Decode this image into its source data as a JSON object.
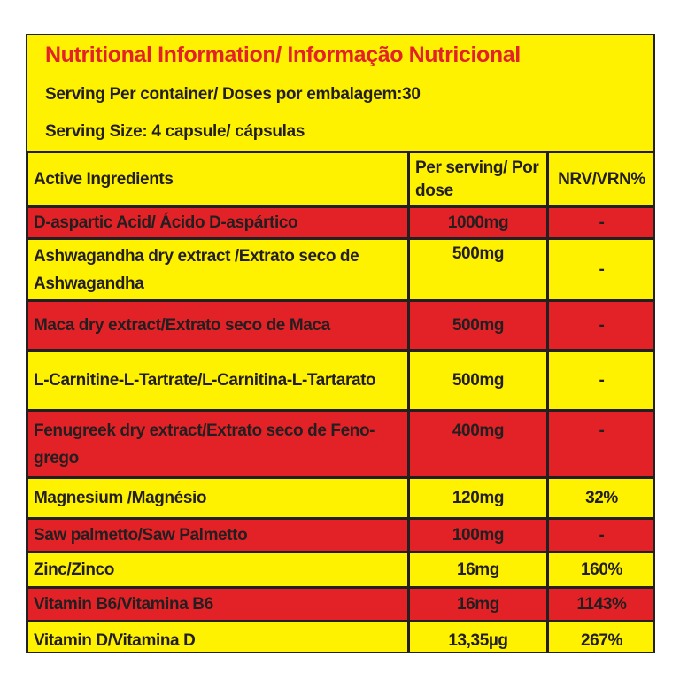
{
  "header": {
    "title": "Nutritional Information/ Informação Nutricional",
    "servings_per_container": "Serving Per container/ Doses por embalagem:30",
    "serving_size": "Serving Size: 4 capsule/ cápsulas"
  },
  "table": {
    "columns": [
      "Active Ingredients",
      "Per serving/ Por dose",
      "NRV/VRN%"
    ],
    "rows": [
      {
        "ingredient": "D-aspartic Acid/ Ácido D-aspártico",
        "per_serving": "1000mg",
        "nrv": "-"
      },
      {
        "ingredient": "Ashwagandha dry extract /Extrato seco de Ashwagandha",
        "per_serving": "500mg",
        "nrv": "-"
      },
      {
        "ingredient": "Maca dry extract/Extrato seco de Maca",
        "per_serving": "500mg",
        "nrv": "-"
      },
      {
        "ingredient": "L-Carnitine-L-Tartrate/L-Carnitina-L-Tartarato",
        "per_serving": "500mg",
        "nrv": "-"
      },
      {
        "ingredient": "Fenugreek dry extract/Extrato seco de Feno-grego",
        "per_serving": "400mg",
        "nrv": "-"
      },
      {
        "ingredient": "Magnesium /Magnésio",
        "per_serving": "120mg",
        "nrv": "32%"
      },
      {
        "ingredient": "Saw palmetto/Saw Palmetto",
        "per_serving": "100mg",
        "nrv": "-"
      },
      {
        "ingredient": "Zinc/Zinco",
        "per_serving": "16mg",
        "nrv": "160%"
      },
      {
        "ingredient": "Vitamin B6/Vitamina B6",
        "per_serving": "16mg",
        "nrv": "1143%"
      },
      {
        "ingredient": "Vitamin D/Vitamina D",
        "per_serving": "13,35µg",
        "nrv": "267%"
      }
    ]
  },
  "colors": {
    "yellow": "#fff200",
    "red": "#e32227",
    "text": "#231f20"
  }
}
